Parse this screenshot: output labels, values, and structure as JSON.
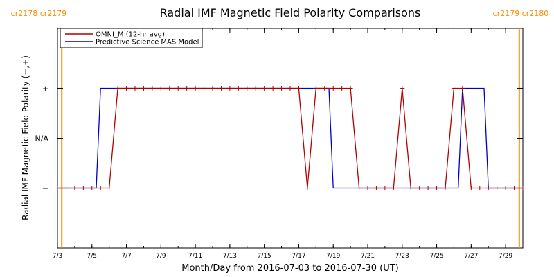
{
  "chart_data": {
    "type": "line",
    "title": "Radial IMF Magnetic Field Polarity Comparisons",
    "xlabel": "Month/Day from 2016-07-03 to 2016-07-30 (UT)",
    "ylabel": "Radial IMF Magnetic Field Polarity (−,+)",
    "x_range": [
      "2016-07-03 00:00",
      "2016-07-30 00:00"
    ],
    "x_ticks": [
      "7/3",
      "7/5",
      "7/7",
      "7/9",
      "7/11",
      "7/13",
      "7/15",
      "7/17",
      "7/19",
      "7/21",
      "7/23",
      "7/25",
      "7/27",
      "7/29"
    ],
    "y_categories": [
      "−",
      "N/A",
      "+"
    ],
    "y_values_map": {
      "−": -1,
      "N/A": 0,
      "+": 1
    },
    "ylim": [
      -2.2,
      2.2
    ],
    "legend_position": "top-left",
    "grid": false,
    "carrington_markers": [
      {
        "label": "cr2178 cr2179",
        "time": "2016-07-03 06:00",
        "side": "left",
        "color": "#ff8c00"
      },
      {
        "label": "cr2179 cr2180",
        "time": "2016-07-29 19:00",
        "side": "right",
        "color": "#ff8c00"
      }
    ],
    "series": [
      {
        "name": "OMNI_M (12-hr avg)",
        "color": "#b00000",
        "markers": true,
        "points": [
          [
            "2016-07-03 00:00",
            -1
          ],
          [
            "2016-07-03 12:00",
            -1
          ],
          [
            "2016-07-04 00:00",
            -1
          ],
          [
            "2016-07-04 12:00",
            -1
          ],
          [
            "2016-07-05 00:00",
            -1
          ],
          [
            "2016-07-05 12:00",
            -1
          ],
          [
            "2016-07-06 00:00",
            -1
          ],
          [
            "2016-07-06 12:00",
            1
          ],
          [
            "2016-07-07 00:00",
            1
          ],
          [
            "2016-07-07 12:00",
            1
          ],
          [
            "2016-07-08 00:00",
            1
          ],
          [
            "2016-07-08 12:00",
            1
          ],
          [
            "2016-07-09 00:00",
            1
          ],
          [
            "2016-07-09 12:00",
            1
          ],
          [
            "2016-07-10 00:00",
            1
          ],
          [
            "2016-07-10 12:00",
            1
          ],
          [
            "2016-07-11 00:00",
            1
          ],
          [
            "2016-07-11 12:00",
            1
          ],
          [
            "2016-07-12 00:00",
            1
          ],
          [
            "2016-07-12 12:00",
            1
          ],
          [
            "2016-07-13 00:00",
            1
          ],
          [
            "2016-07-13 12:00",
            1
          ],
          [
            "2016-07-14 00:00",
            1
          ],
          [
            "2016-07-14 12:00",
            1
          ],
          [
            "2016-07-15 00:00",
            1
          ],
          [
            "2016-07-15 12:00",
            1
          ],
          [
            "2016-07-16 00:00",
            1
          ],
          [
            "2016-07-16 12:00",
            1
          ],
          [
            "2016-07-17 00:00",
            1
          ],
          [
            "2016-07-17 12:00",
            -1
          ],
          [
            "2016-07-18 00:00",
            1
          ],
          [
            "2016-07-18 12:00",
            1
          ],
          [
            "2016-07-19 00:00",
            1
          ],
          [
            "2016-07-19 12:00",
            1
          ],
          [
            "2016-07-20 00:00",
            1
          ],
          [
            "2016-07-20 12:00",
            -1
          ],
          [
            "2016-07-21 00:00",
            -1
          ],
          [
            "2016-07-21 12:00",
            -1
          ],
          [
            "2016-07-22 00:00",
            -1
          ],
          [
            "2016-07-22 12:00",
            -1
          ],
          [
            "2016-07-23 00:00",
            1
          ],
          [
            "2016-07-23 12:00",
            -1
          ],
          [
            "2016-07-24 00:00",
            -1
          ],
          [
            "2016-07-24 12:00",
            -1
          ],
          [
            "2016-07-25 00:00",
            -1
          ],
          [
            "2016-07-25 12:00",
            -1
          ],
          [
            "2016-07-26 00:00",
            1
          ],
          [
            "2016-07-26 12:00",
            1
          ],
          [
            "2016-07-27 00:00",
            -1
          ],
          [
            "2016-07-27 12:00",
            -1
          ],
          [
            "2016-07-28 00:00",
            -1
          ],
          [
            "2016-07-28 12:00",
            -1
          ],
          [
            "2016-07-29 00:00",
            -1
          ],
          [
            "2016-07-29 12:00",
            -1
          ],
          [
            "2016-07-30 00:00",
            -1
          ]
        ]
      },
      {
        "name": "Predictive Science MAS Model",
        "color": "#0000cc",
        "markers": false,
        "points": [
          [
            "2016-07-03 00:00",
            -1
          ],
          [
            "2016-07-05 06:00",
            -1
          ],
          [
            "2016-07-05 12:00",
            1
          ],
          [
            "2016-07-18 18:00",
            1
          ],
          [
            "2016-07-19 00:00",
            -1
          ],
          [
            "2016-07-26 06:00",
            -1
          ],
          [
            "2016-07-26 12:00",
            1
          ],
          [
            "2016-07-27 18:00",
            1
          ],
          [
            "2016-07-28 00:00",
            -1
          ],
          [
            "2016-07-30 00:00",
            -1
          ]
        ]
      }
    ]
  }
}
